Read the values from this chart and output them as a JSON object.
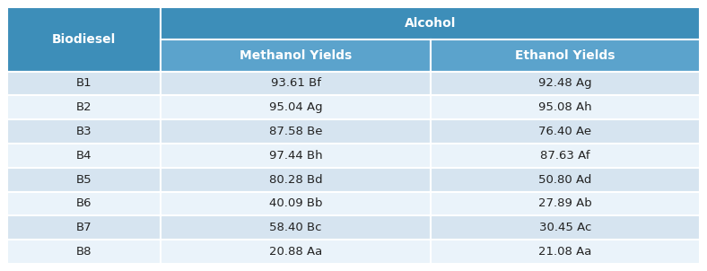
{
  "title_col1": "Biodiesel",
  "title_alcohol": "Alcohol",
  "col2_header": "Methanol Yields",
  "col3_header": "Ethanol Yields",
  "rows": [
    [
      "B1",
      "93.61 Bf",
      "92.48 Ag"
    ],
    [
      "B2",
      "95.04 Ag",
      "95.08 Ah"
    ],
    [
      "B3",
      "87.58 Be",
      "76.40 Ae"
    ],
    [
      "B4",
      "97.44 Bh",
      "87.63 Af"
    ],
    [
      "B5",
      "80.28 Bd",
      "50.80 Ad"
    ],
    [
      "B6",
      "40.09 Bb",
      "27.89 Ab"
    ],
    [
      "B7",
      "58.40 Bc",
      "30.45 Ac"
    ],
    [
      "B8",
      "20.88 Aa",
      "21.08 Aa"
    ]
  ],
  "header_bg": "#3D8EB9",
  "subheader_bg": "#5BA3CC",
  "row_bg_odd": "#D6E4F0",
  "row_bg_even": "#EAF3FA",
  "header_text_color": "#FFFFFF",
  "cell_text_color": "#222222",
  "border_color": "#FFFFFF",
  "header_font_size": 10,
  "cell_font_size": 9.5
}
